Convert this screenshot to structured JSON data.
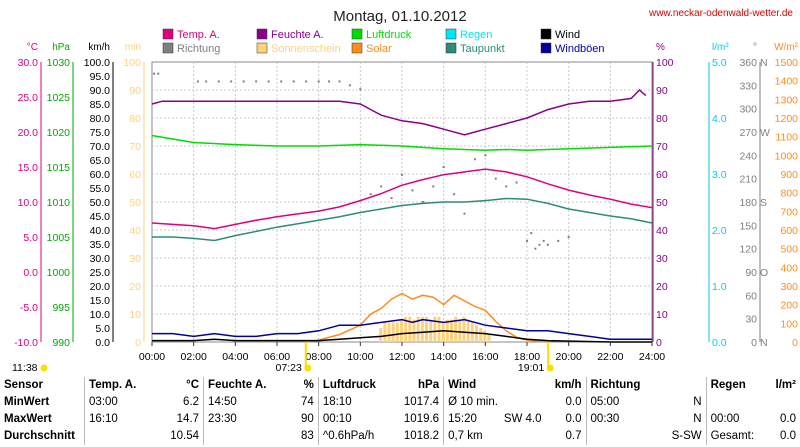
{
  "header": {
    "title": "Montag, 01.10.2012",
    "site": "www.neckar-odenwald-wetter.de"
  },
  "colors": {
    "temp": "#e0007f",
    "humidity": "#8b008b",
    "pressure": "#00dd00",
    "rain": "#00e5ff",
    "wind": "#000000",
    "direction": "#808080",
    "sunshine": "#ffd27a",
    "solar": "#ff8c1a",
    "dewpoint": "#2e8b7a",
    "gust": "#0000a0"
  },
  "legend": [
    {
      "label": "Temp. A.",
      "color": "#e0007f"
    },
    {
      "label": "Feuchte A.",
      "color": "#8b008b"
    },
    {
      "label": "Luftdruck",
      "color": "#00dd00"
    },
    {
      "label": "Regen",
      "color": "#00e5ff"
    },
    {
      "label": "Wind",
      "color": "#000000"
    },
    {
      "label": "Richtung",
      "color": "#808080"
    },
    {
      "label": "Sonnenschein",
      "color": "#ffd27a"
    },
    {
      "label": "Solar",
      "color": "#ff8c1a"
    },
    {
      "label": "Taupunkt",
      "color": "#2e8b7a"
    },
    {
      "label": "Windböen",
      "color": "#0000a0"
    }
  ],
  "axes": [
    {
      "unit": "°C",
      "color": "#e0007f",
      "min": -10,
      "max": 30,
      "ticks": [
        "-10.0",
        "-5.0",
        "0.0",
        "5.0",
        "10.0",
        "15.0",
        "20.0",
        "25.0",
        "30.0"
      ]
    },
    {
      "unit": "hPa",
      "color": "#00aa00",
      "min": 990,
      "max": 1030,
      "ticks": [
        "990",
        "995",
        "1000",
        "1005",
        "1010",
        "1015",
        "1020",
        "1025",
        "1030"
      ]
    },
    {
      "unit": "km/h",
      "color": "#000000",
      "min": 0,
      "max": 100,
      "ticks": [
        "0.0",
        "5.0",
        "10.0",
        "15.0",
        "20.0",
        "25.0",
        "30.0",
        "35.0",
        "40.0",
        "45.0",
        "50.0",
        "55.0",
        "60.0",
        "65.0",
        "70.0",
        "75.0",
        "80.0",
        "85.0",
        "90.0",
        "95.0",
        "100.0"
      ]
    },
    {
      "unit": "min",
      "color": "#ffd27a",
      "min": 0,
      "max": 100,
      "ticks": [
        "0",
        "10",
        "20",
        "30",
        "40",
        "50",
        "60",
        "70",
        "80",
        "90",
        "100"
      ]
    },
    {
      "unit": "%",
      "color": "#8b008b",
      "min": 0,
      "max": 100,
      "ticks": [
        "0",
        "10",
        "20",
        "30",
        "40",
        "50",
        "60",
        "70",
        "80",
        "90",
        "100"
      ]
    },
    {
      "unit": "l/m²",
      "color": "#00ccee",
      "min": 0,
      "max": 5,
      "ticks": [
        "0.0",
        "1.0",
        "2.0",
        "3.0",
        "4.0",
        "5.0"
      ]
    },
    {
      "unit": "°",
      "color": "#808080",
      "min": 0,
      "max": 360,
      "ticks": [
        "0",
        "30",
        "60",
        "90",
        "120",
        "150",
        "180",
        "210",
        "240",
        "270",
        "300",
        "330",
        "360"
      ],
      "dir": {
        "0": "N",
        "90": "O",
        "180": "S",
        "270": "W",
        "360": "N"
      }
    },
    {
      "unit": "W/m²",
      "color": "#ff8c1a",
      "min": 0,
      "max": 1500,
      "ticks": [
        "0",
        "100",
        "200",
        "300",
        "400",
        "500",
        "600",
        "700",
        "800",
        "900",
        "1000",
        "1100",
        "1200",
        "1300",
        "1400",
        "1500"
      ]
    }
  ],
  "x_ticks": [
    "00:00",
    "02:00",
    "04:00",
    "06:00",
    "08:00",
    "10:00",
    "12:00",
    "14:00",
    "16:00",
    "18:00",
    "20:00",
    "22:00",
    "24:00"
  ],
  "sun": {
    "rise": "07:23",
    "set": "19:01",
    "moonrise": "11:38"
  },
  "chart_data": {
    "type": "line",
    "x_unit": "hour",
    "series": [
      {
        "name": "Feuchte A.",
        "axis": "%",
        "points": [
          [
            0,
            85
          ],
          [
            0.5,
            86
          ],
          [
            2,
            86
          ],
          [
            4,
            86
          ],
          [
            6,
            86
          ],
          [
            8,
            86
          ],
          [
            9,
            86
          ],
          [
            10,
            85
          ],
          [
            10.5,
            83
          ],
          [
            11,
            81
          ],
          [
            12,
            79
          ],
          [
            13,
            78
          ],
          [
            13.5,
            77
          ],
          [
            14,
            76
          ],
          [
            15,
            74
          ],
          [
            15.5,
            75
          ],
          [
            16,
            76
          ],
          [
            17,
            78
          ],
          [
            18,
            80
          ],
          [
            19,
            83
          ],
          [
            20,
            85
          ],
          [
            21,
            86
          ],
          [
            22,
            86
          ],
          [
            23,
            87
          ],
          [
            23.4,
            90
          ],
          [
            23.7,
            88
          ]
        ]
      },
      {
        "name": "Luftdruck",
        "axis": "hPa",
        "points": [
          [
            0,
            1019.5
          ],
          [
            1,
            1019
          ],
          [
            2,
            1018.5
          ],
          [
            4,
            1018.2
          ],
          [
            6,
            1018
          ],
          [
            8,
            1018
          ],
          [
            10,
            1018.2
          ],
          [
            12,
            1018
          ],
          [
            14,
            1017.6
          ],
          [
            16,
            1017.4
          ],
          [
            17,
            1017.5
          ],
          [
            18,
            1017.4
          ],
          [
            20,
            1017.6
          ],
          [
            22,
            1017.8
          ],
          [
            24,
            1018
          ]
        ]
      },
      {
        "name": "Temp. A.",
        "axis": "°C",
        "points": [
          [
            0,
            7
          ],
          [
            1,
            6.8
          ],
          [
            2,
            6.6
          ],
          [
            3,
            6.2
          ],
          [
            4,
            6.8
          ],
          [
            5,
            7.4
          ],
          [
            6,
            7.9
          ],
          [
            7,
            8.3
          ],
          [
            8,
            8.7
          ],
          [
            9,
            9.3
          ],
          [
            10,
            10.2
          ],
          [
            11,
            11.2
          ],
          [
            12,
            12.4
          ],
          [
            13,
            13.2
          ],
          [
            14,
            13.9
          ],
          [
            15,
            14.3
          ],
          [
            16,
            14.7
          ],
          [
            17,
            14.3
          ],
          [
            18,
            13.6
          ],
          [
            19,
            12.6
          ],
          [
            20,
            11.7
          ],
          [
            21,
            11
          ],
          [
            22,
            10.4
          ],
          [
            23,
            9.7
          ],
          [
            24,
            9.2
          ]
        ]
      },
      {
        "name": "Taupunkt",
        "axis": "°C",
        "points": [
          [
            0,
            5
          ],
          [
            1,
            5
          ],
          [
            2,
            4.8
          ],
          [
            3,
            4.5
          ],
          [
            4,
            5.2
          ],
          [
            5,
            5.8
          ],
          [
            6,
            6.4
          ],
          [
            7,
            6.9
          ],
          [
            8,
            7.4
          ],
          [
            9,
            7.9
          ],
          [
            10,
            8.5
          ],
          [
            11,
            9
          ],
          [
            12,
            9.5
          ],
          [
            13,
            9.8
          ],
          [
            14,
            10
          ],
          [
            15,
            10
          ],
          [
            16,
            10.2
          ],
          [
            17,
            10.5
          ],
          [
            18,
            10.4
          ],
          [
            19,
            9.8
          ],
          [
            20,
            9
          ],
          [
            21,
            8.5
          ],
          [
            22,
            8
          ],
          [
            23,
            7.6
          ],
          [
            24,
            7
          ]
        ]
      },
      {
        "name": "Solar",
        "axis": "W/m²",
        "points": [
          [
            7.4,
            0
          ],
          [
            8,
            10
          ],
          [
            9,
            40
          ],
          [
            10,
            90
          ],
          [
            10.5,
            150
          ],
          [
            11,
            180
          ],
          [
            11.5,
            230
          ],
          [
            12,
            260
          ],
          [
            12.5,
            230
          ],
          [
            13,
            250
          ],
          [
            13.5,
            240
          ],
          [
            14,
            200
          ],
          [
            14.5,
            250
          ],
          [
            15,
            220
          ],
          [
            15.5,
            190
          ],
          [
            16,
            170
          ],
          [
            16.5,
            110
          ],
          [
            17,
            60
          ],
          [
            17.5,
            25
          ],
          [
            18,
            10
          ],
          [
            19,
            0
          ]
        ]
      },
      {
        "name": "Wind",
        "axis": "km/h",
        "points": [
          [
            0,
            0.5
          ],
          [
            2,
            0.5
          ],
          [
            3,
            1
          ],
          [
            4,
            0.5
          ],
          [
            6,
            0.5
          ],
          [
            8,
            0.5
          ],
          [
            9,
            1
          ],
          [
            10,
            1.5
          ],
          [
            11,
            2
          ],
          [
            12,
            3
          ],
          [
            13,
            3.5
          ],
          [
            14,
            4
          ],
          [
            15,
            3.5
          ],
          [
            16,
            3
          ],
          [
            17,
            2
          ],
          [
            18,
            1
          ],
          [
            19,
            0.5
          ],
          [
            22,
            0
          ],
          [
            24,
            0
          ]
        ]
      },
      {
        "name": "Windböen",
        "axis": "km/h",
        "points": [
          [
            0,
            3
          ],
          [
            1,
            3
          ],
          [
            2,
            2
          ],
          [
            3,
            3
          ],
          [
            4,
            2
          ],
          [
            5,
            2
          ],
          [
            6,
            3
          ],
          [
            7,
            3
          ],
          [
            8,
            4
          ],
          [
            9,
            6
          ],
          [
            10,
            6
          ],
          [
            11,
            7
          ],
          [
            12,
            8
          ],
          [
            12.5,
            7
          ],
          [
            13,
            8
          ],
          [
            14,
            7
          ],
          [
            15,
            8
          ],
          [
            16,
            6
          ],
          [
            17,
            5
          ],
          [
            18,
            4
          ],
          [
            19,
            4
          ],
          [
            20,
            3
          ],
          [
            21,
            2
          ],
          [
            22,
            1
          ],
          [
            23,
            1
          ],
          [
            24,
            1
          ]
        ]
      }
    ],
    "direction_samples": [
      [
        0.1,
        345
      ],
      [
        0.3,
        345
      ],
      [
        2.2,
        335
      ],
      [
        2.6,
        335
      ],
      [
        3.2,
        335
      ],
      [
        3.8,
        335
      ],
      [
        4.4,
        335
      ],
      [
        5.0,
        335
      ],
      [
        5.6,
        335
      ],
      [
        6.2,
        335
      ],
      [
        6.8,
        335
      ],
      [
        7.4,
        335
      ],
      [
        8.0,
        335
      ],
      [
        8.5,
        335
      ],
      [
        9.0,
        335
      ],
      [
        9.5,
        330
      ],
      [
        10,
        325
      ],
      [
        10.5,
        190
      ],
      [
        11,
        200
      ],
      [
        11.5,
        185
      ],
      [
        12,
        215
      ],
      [
        12.5,
        195
      ],
      [
        13,
        180
      ],
      [
        13.5,
        200
      ],
      [
        14,
        225
      ],
      [
        14.5,
        190
      ],
      [
        15,
        165
      ],
      [
        15.5,
        235
      ],
      [
        16,
        240
      ],
      [
        16.5,
        210
      ],
      [
        17,
        200
      ],
      [
        17.5,
        205
      ],
      [
        18,
        130
      ],
      [
        18.2,
        140
      ],
      [
        18.4,
        120
      ],
      [
        18.6,
        125
      ],
      [
        18.8,
        130
      ],
      [
        19,
        125
      ],
      [
        19.5,
        130
      ],
      [
        20,
        135
      ]
    ],
    "sunshine_minutes_per_10min": [
      [
        11,
        5
      ],
      [
        11.2,
        7
      ],
      [
        11.4,
        7
      ],
      [
        11.6,
        7
      ],
      [
        11.8,
        7
      ],
      [
        12,
        8
      ],
      [
        12.2,
        9
      ],
      [
        12.4,
        9
      ],
      [
        12.6,
        8
      ],
      [
        12.8,
        9
      ],
      [
        13,
        9
      ],
      [
        13.2,
        9
      ],
      [
        13.4,
        8
      ],
      [
        13.6,
        9
      ],
      [
        13.8,
        9
      ],
      [
        14,
        7
      ],
      [
        14.2,
        8
      ],
      [
        14.4,
        8
      ],
      [
        14.6,
        9
      ],
      [
        14.8,
        8
      ],
      [
        15,
        9
      ],
      [
        15.2,
        8
      ],
      [
        15.4,
        7
      ],
      [
        15.6,
        6
      ],
      [
        15.8,
        5
      ],
      [
        16,
        4
      ],
      [
        16.2,
        3
      ]
    ]
  },
  "stats": {
    "headers": {
      "sensor": "Sensor",
      "temp": "Temp. A.",
      "temp_unit": "°C",
      "hum": "Feuchte A.",
      "hum_unit": "%",
      "press": "Luftdruck",
      "press_unit": "hPa",
      "wind": "Wind",
      "wind_unit": "km/h",
      "dir": "Richtung",
      "rain": "Regen",
      "rain_unit": "l/m²"
    },
    "rows": [
      {
        "label": "MinWert",
        "t_time": "03:00",
        "t_val": "6.2",
        "h_time": "14:50",
        "h_val": "74",
        "p_time": "18:10",
        "p_val": "1017.4",
        "w_time": "Ø 10 min.",
        "w_val": "0.0",
        "d_time": "05:00",
        "d_val": "N",
        "r_time": "",
        "r_val": ""
      },
      {
        "label": "MaxWert",
        "t_time": "16:10",
        "t_val": "14.7",
        "h_time": "23:30",
        "h_val": "90",
        "p_time": "00:10",
        "p_val": "1019.6",
        "w_time": "15:20",
        "w_sub": "SW 4.0",
        "w_val": "0.0",
        "d_time": "00:30",
        "d_val": "N",
        "r_time": "00:00",
        "r_val": "0.0"
      },
      {
        "label": "Durchschnitt",
        "t_time": "",
        "t_val": "10.54",
        "h_time": "",
        "h_val": "83",
        "p_time": "^0.6hPa/h",
        "p_val": "1018.2",
        "w_time": "0,7 km",
        "w_val": "0.7",
        "d_time": "",
        "d_val": "S-SW",
        "r_time": "Gesamt:",
        "r_val": "0.0"
      }
    ]
  }
}
